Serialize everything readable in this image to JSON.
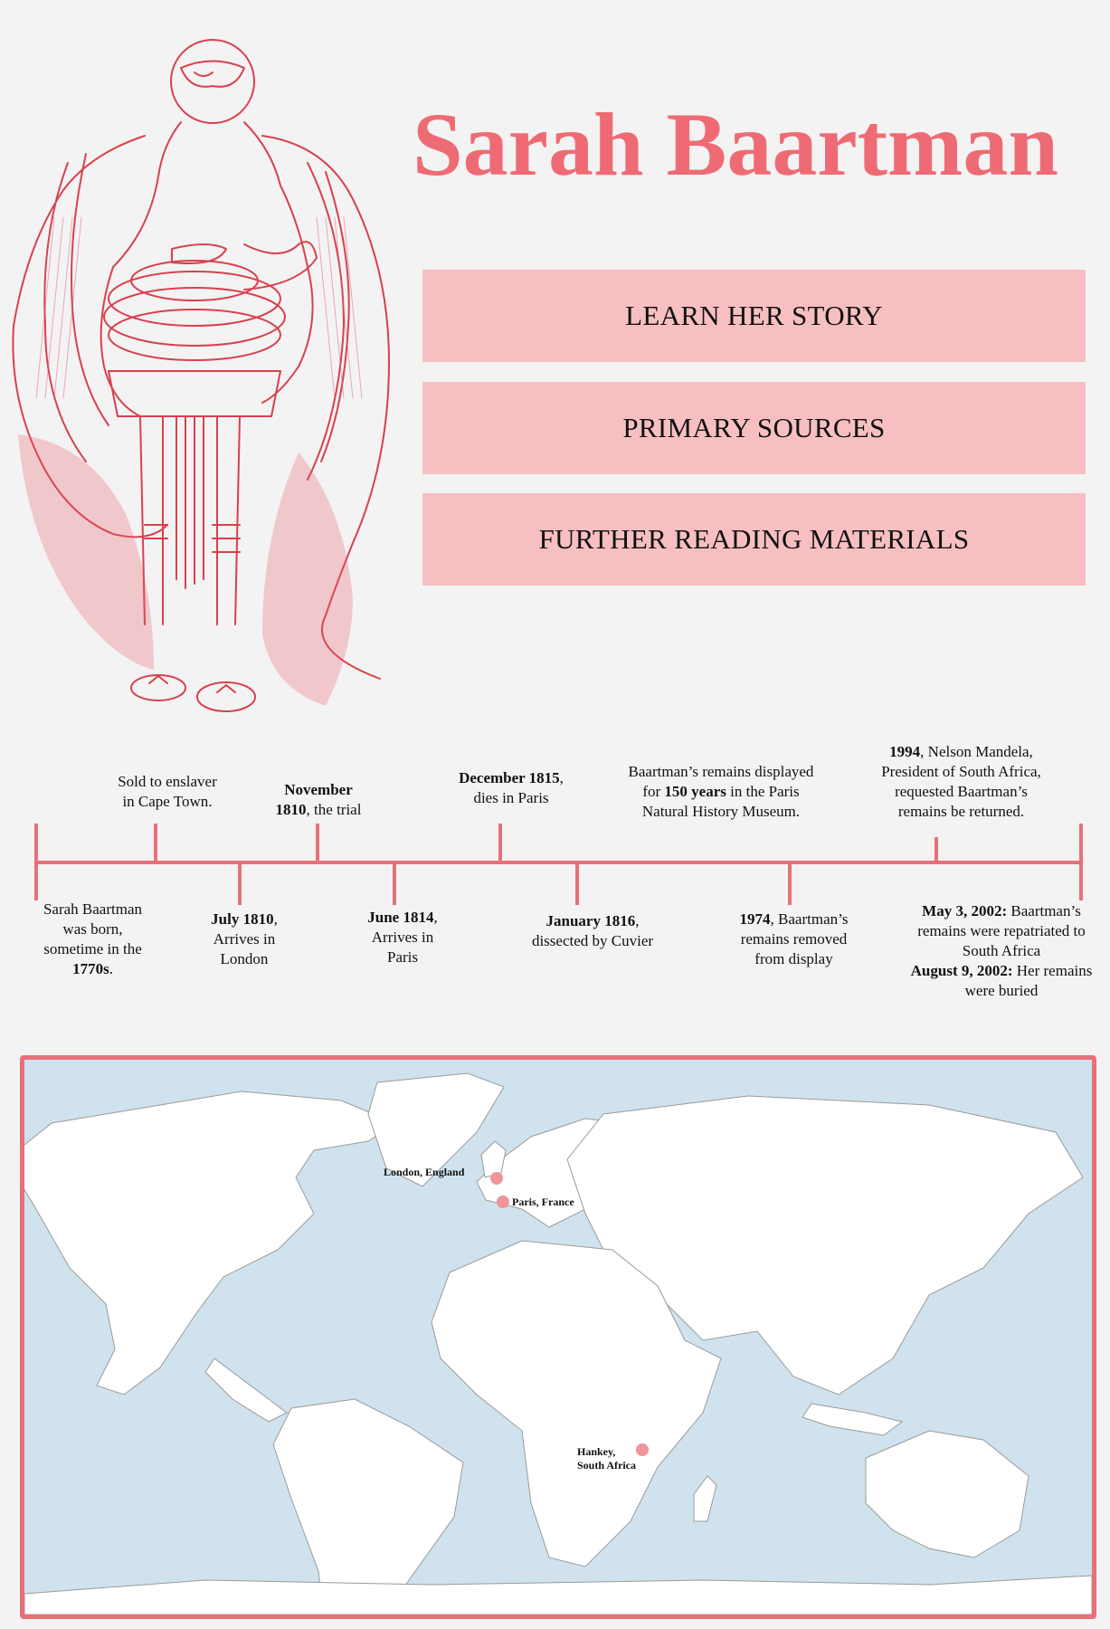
{
  "title": "Sarah Baartman",
  "accent_color": "#ef6b74",
  "button_color": "#f8bfc2",
  "illustration_icon": "sarah-baartman-illustration",
  "nav": {
    "learn": "LEARN HER STORY",
    "primary": "PRIMARY SOURCES",
    "further": "FURTHER READING MATERIALS"
  },
  "timeline": {
    "above": [
      {
        "plain1": "Sold to enslaver",
        "plain2": "in Cape Town."
      },
      {
        "bold": "November",
        "bold2": "1810",
        "plain": ", the trial"
      },
      {
        "bold": "December 1815",
        "plain": ",",
        "plain2": "dies in Paris"
      },
      {
        "l1a": "Baartman’s remains displayed",
        "l2a": "for ",
        "l2b": "150 years",
        "l2c": " in the Paris",
        "l3": "Natural History Museum."
      },
      {
        "bold": "1994",
        "plain": ", Nelson Mandela,",
        "l2": "President of South Africa,",
        "l3": "requested Baartman’s",
        "l4": "remains be returned."
      }
    ],
    "below": [
      {
        "l1": "Sarah Baartman",
        "l2": "was born,",
        "l3": "sometime in the",
        "bold": "1770s",
        "end": "."
      },
      {
        "bold": "July 1810",
        "plain": ",",
        "l2": "Arrives in",
        "l3": "London"
      },
      {
        "bold": "June 1814",
        "plain": ",",
        "l2": "Arrives in",
        "l3": "Paris"
      },
      {
        "bold": "January 1816",
        "plain": ",",
        "l2": "dissected by Cuvier"
      },
      {
        "bold": "1974",
        "plain": ", Baartman’s",
        "l2": "remains removed",
        "l3": "from display"
      },
      {
        "bold": "May 3, 2002:",
        "plain": " Baartman’s",
        "l2": "remains were repatriated to",
        "l3": "South Africa",
        "bold2": "August 9, 2002:",
        "plain2": " Her remains",
        "l5": "were buried"
      }
    ]
  },
  "map": {
    "pins": [
      {
        "label": "London, England"
      },
      {
        "label": "Paris, France"
      },
      {
        "label1": "Hankey,",
        "label2": "South Africa"
      }
    ]
  }
}
